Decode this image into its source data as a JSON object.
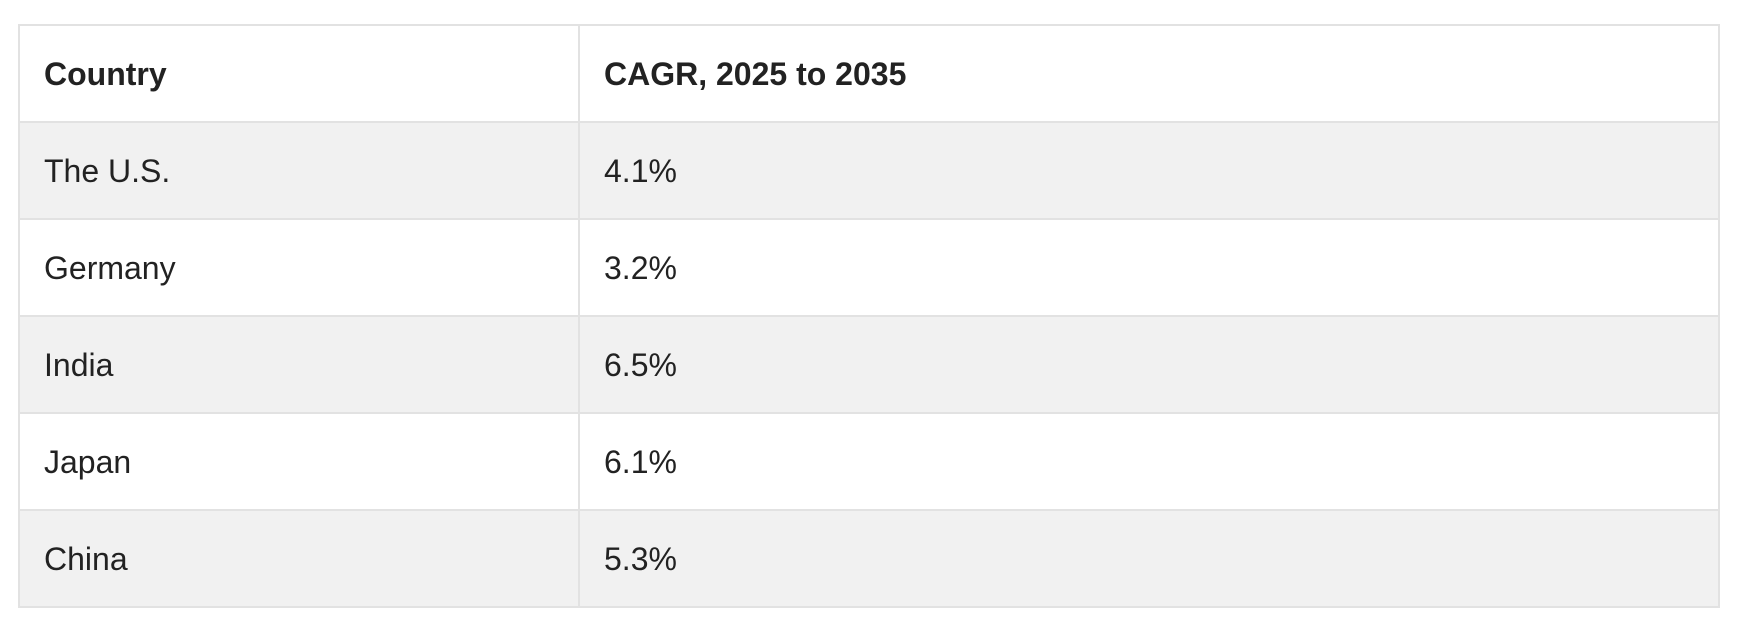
{
  "table": {
    "headers": [
      "Country",
      "CAGR, 2025 to 2035"
    ],
    "rows": [
      [
        "The U.S.",
        "4.1%"
      ],
      [
        "Germany",
        "3.2%"
      ],
      [
        "India",
        "6.5%"
      ],
      [
        "Japan",
        "6.1%"
      ],
      [
        "China",
        "5.3%"
      ]
    ]
  },
  "chart_data": {
    "type": "table",
    "columns": [
      "Country",
      "CAGR, 2025 to 2035"
    ],
    "rows": [
      {
        "country": "The U.S.",
        "cagr_percent": 4.1
      },
      {
        "country": "Germany",
        "cagr_percent": 3.2
      },
      {
        "country": "India",
        "cagr_percent": 6.5
      },
      {
        "country": "Japan",
        "cagr_percent": 6.1
      },
      {
        "country": "China",
        "cagr_percent": 5.3
      }
    ]
  }
}
